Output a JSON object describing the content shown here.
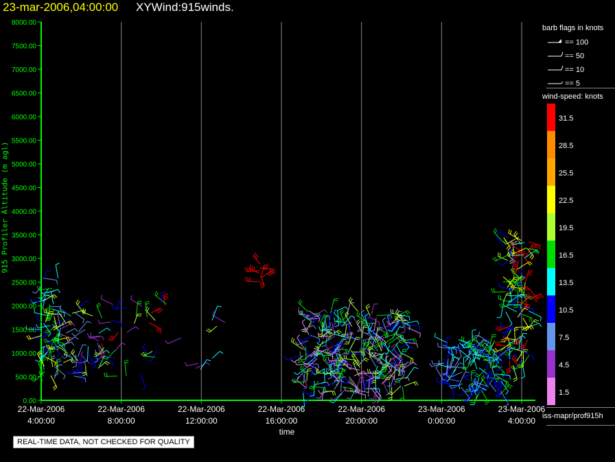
{
  "header": {
    "datetime": "23-mar-2006,04:00:00",
    "title": "XYWind:915winds."
  },
  "y_axis_label": "915 Profiler Altitude (m agl)",
  "legend": {
    "barb_title": "barb flags in knots",
    "barb_entries": [
      "== 100",
      "== 50",
      "== 10",
      "== 5"
    ],
    "speed_title": "wind-speed: knots",
    "speed_levels": [
      {
        "label": "31.5",
        "color": "#ff0000"
      },
      {
        "label": "28.5",
        "color": "#ff8c00"
      },
      {
        "label": "25.5",
        "color": "#ffa500"
      },
      {
        "label": "22.5",
        "color": "#ffff00"
      },
      {
        "label": "19.5",
        "color": "#adff2f"
      },
      {
        "label": "16.5",
        "color": "#00dd00"
      },
      {
        "label": "13.5",
        "color": "#00ffff"
      },
      {
        "label": "10.5",
        "color": "#0000ff"
      },
      {
        "label": "7.5",
        "color": "#6495ed"
      },
      {
        "label": "4.5",
        "color": "#9932cc"
      },
      {
        "label": "1.5",
        "color": "#ee82ee"
      }
    ]
  },
  "source_label": "iss-mapr/prof915h",
  "notice": "REAL-TIME DATA, NOT CHECKED FOR QUALITY",
  "colors": {
    "axis": "#00ff00",
    "grid": "#888888",
    "title_time": "#ffff00"
  },
  "chart_data": {
    "type": "scatter",
    "title": "XYWind:915winds.",
    "xlabel": "time",
    "ylabel": "915 Profiler Altitude (m agl)",
    "ylim": [
      0,
      8000
    ],
    "y_ticks": [
      "0.00",
      "500.00",
      "1000.00",
      "1500.00",
      "2000.00",
      "2500.00",
      "3000.00",
      "3500.00",
      "4000.00",
      "4500.00",
      "5000.00",
      "5500.00",
      "6000.00",
      "6500.00",
      "7000.00",
      "7500.00",
      "8000.00"
    ],
    "x_ticks": [
      {
        "hour": 4,
        "date": "22-Mar-2006",
        "time": "4:00:00"
      },
      {
        "hour": 8,
        "date": "22-Mar-2006",
        "time": "8:00:00"
      },
      {
        "hour": 12,
        "date": "22-Mar-2006",
        "time": "12:00:00"
      },
      {
        "hour": 16,
        "date": "22-Mar-2006",
        "time": "16:00:00"
      },
      {
        "hour": 20,
        "date": "22-Mar-2006",
        "time": "20:00:00"
      },
      {
        "hour": 24,
        "date": "23-Mar-2006",
        "time": "0:00:00"
      },
      {
        "hour": 28,
        "date": "23-Mar-2006",
        "time": "4:00:00"
      }
    ],
    "grid": true,
    "series_clusters": [
      {
        "t0": 4.0,
        "t1": 4.9,
        "y0": 400,
        "y1": 2600,
        "n": 70,
        "speeds": [
          13.5,
          16.5,
          19.5,
          22.5,
          10.5,
          7.5
        ]
      },
      {
        "t0": 4.9,
        "t1": 7.0,
        "y0": 400,
        "y1": 1900,
        "n": 45,
        "speeds": [
          4.5,
          7.5,
          10.5,
          13.5,
          19.5
        ]
      },
      {
        "t0": 7.0,
        "t1": 10.5,
        "y0": 500,
        "y1": 2100,
        "n": 30,
        "speeds": [
          4.5,
          10.5,
          16.5,
          19.5,
          31.5
        ]
      },
      {
        "t0": 10.5,
        "t1": 13.5,
        "y0": 600,
        "y1": 2000,
        "n": 8,
        "speeds": [
          4.5,
          13.5,
          19.5
        ]
      },
      {
        "t0": 14.8,
        "t1": 15.1,
        "y0": 2500,
        "y1": 2900,
        "n": 8,
        "speeds": [
          31.5
        ]
      },
      {
        "t0": 16.9,
        "t1": 22.3,
        "y0": 150,
        "y1": 1900,
        "n": 320,
        "speeds": [
          4.5,
          1.5,
          7.5,
          13.5,
          16.5,
          19.5,
          10.5
        ]
      },
      {
        "t0": 24.0,
        "t1": 25.3,
        "y0": 200,
        "y1": 1300,
        "n": 45,
        "speeds": [
          10.5,
          7.5,
          13.5
        ]
      },
      {
        "t0": 25.3,
        "t1": 27.0,
        "y0": 100,
        "y1": 1300,
        "n": 90,
        "speeds": [
          13.5,
          7.5,
          10.5,
          16.5
        ]
      },
      {
        "t0": 27.0,
        "t1": 28.4,
        "y0": 700,
        "y1": 3500,
        "n": 110,
        "speeds": [
          19.5,
          22.5,
          13.5,
          31.5,
          10.5,
          16.5
        ]
      }
    ]
  }
}
